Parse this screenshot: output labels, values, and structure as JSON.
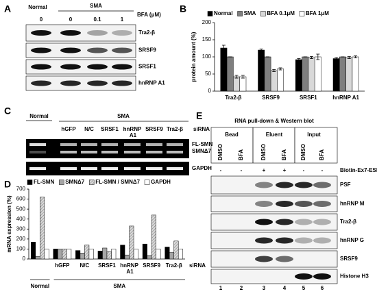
{
  "panel_a": {
    "letter": "A",
    "header": [
      "Normal",
      "SMA"
    ],
    "dose_label": "BFA (μM)",
    "doses": [
      "0",
      "0",
      "0.1",
      "1"
    ],
    "blot_labels": [
      "Tra2-β",
      "SRSF9",
      "SRSF1",
      "hnRNP A1"
    ]
  },
  "chart_data": [
    {
      "type": "bar",
      "label": "B",
      "ylabel": "protein amount (%)",
      "categories": [
        "Tra2-β",
        "SRSF9",
        "SRSF1",
        "hnRNP A1"
      ],
      "series": [
        {
          "name": "Normal",
          "color": "#000000",
          "values": [
            126,
            120,
            92,
            95
          ],
          "errors": [
            8,
            3,
            3,
            3
          ]
        },
        {
          "name": "SMA",
          "color": "#7f7f7f",
          "values": [
            100,
            100,
            100,
            100
          ],
          "errors": [
            0,
            0,
            0,
            0
          ]
        },
        {
          "name": "BFA 0.1μM",
          "color": "#d9d9d9",
          "values": [
            42,
            60,
            98,
            98
          ],
          "errors": [
            4,
            3,
            3,
            3
          ]
        },
        {
          "name": "BFA 1μM",
          "color": "#ffffff",
          "values": [
            42,
            65,
            100,
            100
          ],
          "errors": [
            4,
            3,
            8,
            3
          ]
        }
      ],
      "ylim": [
        0,
        200
      ],
      "yticks": [
        0,
        50,
        100,
        150,
        200
      ]
    },
    {
      "type": "bar",
      "label": "D",
      "ylabel": "mRNA expression (%)",
      "xlabel": "siRNA",
      "group_labels": [
        "Normal",
        "SMA"
      ],
      "categories": [
        null,
        "hGFP",
        "N/C",
        "SRSF1",
        "hnRNP A1",
        "SRSF9",
        "Tra2-β"
      ],
      "series": [
        {
          "name": "FL-SMN",
          "color": "#000000",
          "values": [
            170,
            100,
            85,
            80,
            140,
            150,
            120
          ]
        },
        {
          "name": "SMNΔ7",
          "color": "#a6a6a6",
          "values": [
            25,
            100,
            60,
            110,
            40,
            35,
            65
          ]
        },
        {
          "name": "FL-SMN / SMNΔ7",
          "color": "#d9d9d9",
          "hatch": true,
          "values": [
            620,
            100,
            140,
            75,
            330,
            440,
            180
          ]
        },
        {
          "name": "GAPDH",
          "color": "#ffffff",
          "values": [
            100,
            100,
            100,
            100,
            100,
            100,
            100
          ]
        }
      ],
      "ylim": [
        0,
        700
      ],
      "yticks": [
        0,
        100,
        200,
        300,
        400,
        500,
        600,
        700
      ]
    }
  ],
  "panel_c": {
    "letter": "C",
    "header": [
      "Normal",
      "SMA"
    ],
    "lanes": [
      "hGFP",
      "N/C",
      "SRSF1",
      "hnRNP A1",
      "SRSF9",
      "Tra2-β"
    ],
    "siRNA_label": "siRNA",
    "band_labels": [
      "FL-SMN",
      "SMNΔ7",
      "GAPDH"
    ]
  },
  "panel_e": {
    "letter": "E",
    "title": "RNA pull-down & Western blot",
    "groups": [
      "Bead",
      "Eluent",
      "Input"
    ],
    "treatments": [
      "DMSO",
      "BFA",
      "DMSO",
      "BFA",
      "DMSO",
      "BFA"
    ],
    "probe_label": "Biotin-Ex7-ESE",
    "probe": [
      "-",
      "-",
      "+",
      "+",
      "-",
      "-"
    ],
    "blot_labels": [
      "PSF",
      "hnRNP M",
      "Tra2-β",
      "hnRNP G",
      "SRSF9",
      "Histone H3"
    ],
    "lanes": [
      "1",
      "2",
      "3",
      "4",
      "5",
      "6"
    ]
  }
}
